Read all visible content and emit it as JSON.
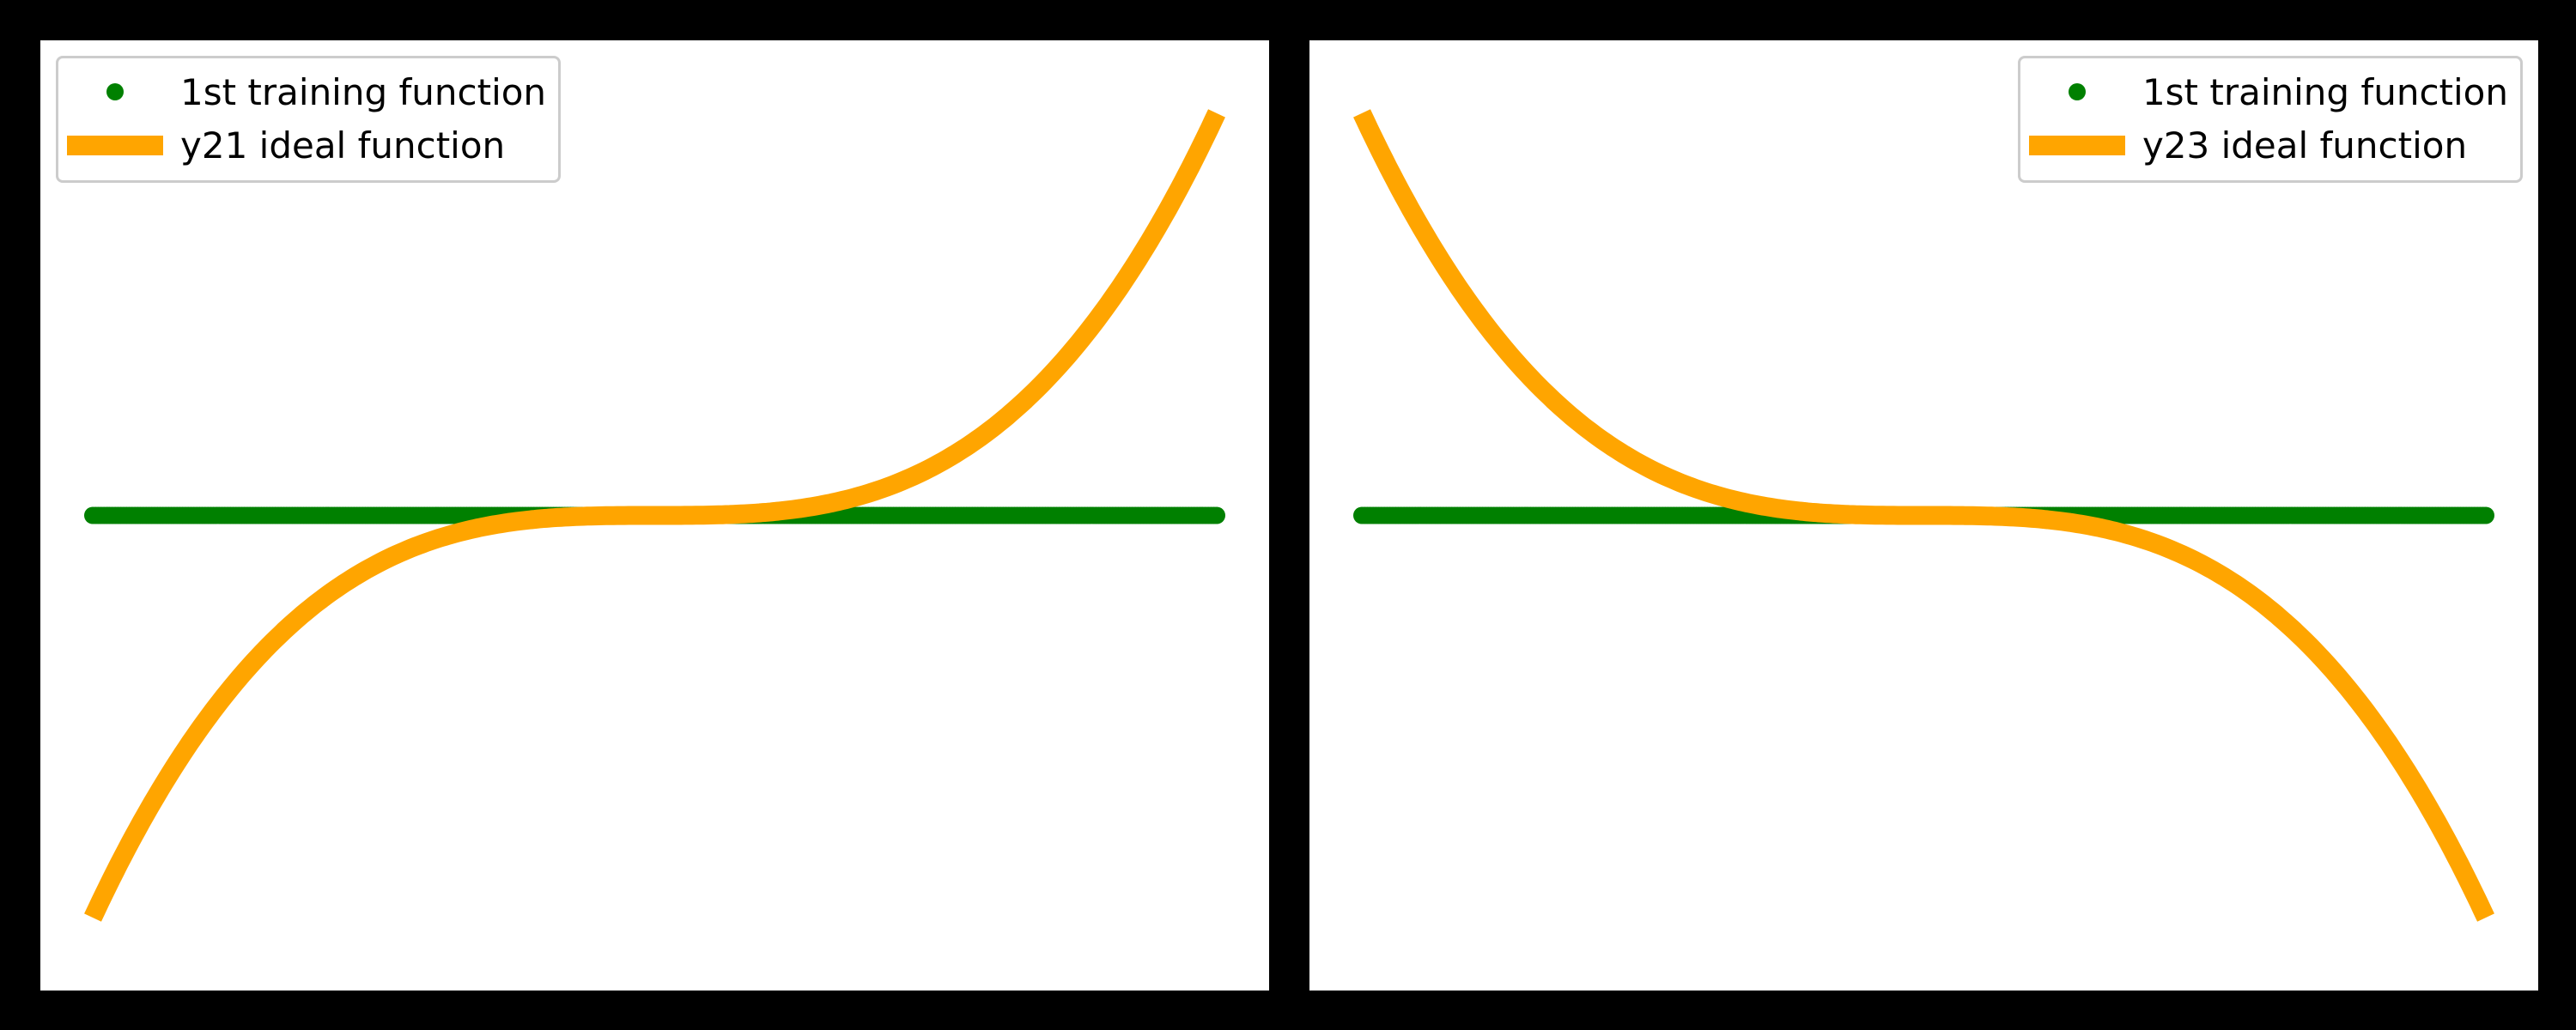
{
  "chart_data": [
    {
      "type": "line",
      "title": "",
      "xlabel": "",
      "ylabel": "",
      "xlim": [
        -20,
        20
      ],
      "ylim": [
        -8800,
        8800
      ],
      "grid": false,
      "axes_visible": false,
      "legend_position": "upper-left",
      "series": [
        {
          "name": "1st training function",
          "style": "scatter",
          "color": "#008000",
          "x": [
            -20,
            -18,
            -16,
            -14,
            -12,
            -10,
            -8,
            -6,
            -4,
            -2,
            0,
            2,
            4,
            6,
            8,
            10,
            12,
            14,
            16,
            18,
            20
          ],
          "values": [
            0,
            0,
            0,
            0,
            0,
            0,
            0,
            0,
            0,
            0,
            0,
            0,
            0,
            0,
            0,
            0,
            0,
            0,
            0,
            0,
            0
          ]
        },
        {
          "name": "y21 ideal function",
          "style": "line",
          "color": "#ffa500",
          "x": [
            -20,
            -18,
            -16,
            -14,
            -12,
            -10,
            -8,
            -6,
            -4,
            -2,
            0,
            2,
            4,
            6,
            8,
            10,
            12,
            14,
            16,
            18,
            20
          ],
          "values": [
            -8000,
            -5832,
            -4096,
            -2744,
            -1728,
            -1000,
            -512,
            -216,
            -64,
            -8,
            0,
            8,
            64,
            216,
            512,
            1000,
            1728,
            2744,
            4096,
            5832,
            8000
          ]
        }
      ]
    },
    {
      "type": "line",
      "title": "",
      "xlabel": "",
      "ylabel": "",
      "xlim": [
        -20,
        20
      ],
      "ylim": [
        -8800,
        8800
      ],
      "grid": false,
      "axes_visible": false,
      "legend_position": "upper-right",
      "series": [
        {
          "name": "1st training function",
          "style": "scatter",
          "color": "#008000",
          "x": [
            -20,
            -18,
            -16,
            -14,
            -12,
            -10,
            -8,
            -6,
            -4,
            -2,
            0,
            2,
            4,
            6,
            8,
            10,
            12,
            14,
            16,
            18,
            20
          ],
          "values": [
            0,
            0,
            0,
            0,
            0,
            0,
            0,
            0,
            0,
            0,
            0,
            0,
            0,
            0,
            0,
            0,
            0,
            0,
            0,
            0,
            0
          ]
        },
        {
          "name": "y23 ideal function",
          "style": "line",
          "color": "#ffa500",
          "x": [
            -20,
            -18,
            -16,
            -14,
            -12,
            -10,
            -8,
            -6,
            -4,
            -2,
            0,
            2,
            4,
            6,
            8,
            10,
            12,
            14,
            16,
            18,
            20
          ],
          "values": [
            8000,
            5832,
            4096,
            2744,
            1728,
            1000,
            512,
            216,
            64,
            8,
            0,
            -8,
            -64,
            -216,
            -512,
            -1000,
            -1728,
            -2744,
            -4096,
            -5832,
            -8000
          ]
        }
      ]
    }
  ]
}
